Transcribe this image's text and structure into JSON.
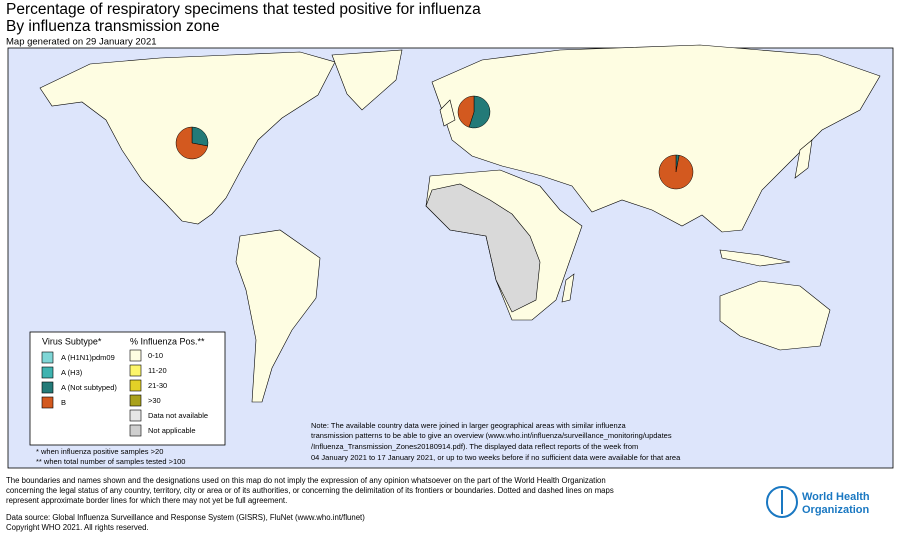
{
  "title_lines": [
    "Percentage of respiratory specimens that tested positive for influenza",
    "By influenza transmission zone"
  ],
  "generated": "Map generated on 29 January 2021",
  "legend": {
    "subtype_title": "Virus Subtype*",
    "subtypes": [
      {
        "label": "A (H1N1)pdm09",
        "color": "#7fd6d6"
      },
      {
        "label": "A (H3)",
        "color": "#3fb3b0"
      },
      {
        "label": "A (Not subtyped)",
        "color": "#237a78"
      },
      {
        "label": "B",
        "color": "#d3591f"
      }
    ],
    "pos_title": "% Influenza Pos.**",
    "pos_classes": [
      {
        "label": "0-10",
        "color": "#fefde2"
      },
      {
        "label": "11-20",
        "color": "#fcf56a"
      },
      {
        "label": "21-30",
        "color": "#e3d127"
      },
      {
        "label": ">30",
        "color": "#a9a11a"
      },
      {
        "label": "Data not available",
        "color": "#e6e6e6"
      },
      {
        "label": "Not applicable",
        "color": "#cfcfcf"
      }
    ]
  },
  "footnotes": [
    "* when influenza positive samples >20",
    "** when total number of samples tested >100"
  ],
  "note": [
    "Note: The available country data were joined in larger geographical areas with similar influenza",
    "transmission patterns to be able to give an overview (www.who.int/influenza/surveillance_monitoring/updates",
    "/Influenza_Transmission_Zones20180914.pdf). The displayed data reflect reports of the week from",
    "04 January 2021 to 17 January 2021, or up to two weeks before if no sufficient data were available for that area"
  ],
  "disclaimer": [
    "The boundaries and names shown and the designations used on this map do not imply the expression of any opinion whatsoever on the part of the World Health Organization",
    "concerning the legal status of any country, territory, city or area or of its authorities, or concerning the delimitation of its frontiers or boundaries. Dotted and dashed lines on maps",
    "represent approximate border lines for which there may not yet be full agreement."
  ],
  "source": "Data source: Global Influenza Surveillance and Response System (GISRS), FluNet (www.who.int/flunet)",
  "copyright": "Copyright WHO 2021. All rights reserved.",
  "logo": [
    "World Health",
    "Organization"
  ],
  "pies": [
    {
      "values": [
        0,
        0,
        28,
        72
      ]
    },
    {
      "values": [
        0,
        0,
        55,
        45
      ]
    },
    {
      "values": [
        0,
        0,
        3,
        97
      ]
    }
  ]
}
